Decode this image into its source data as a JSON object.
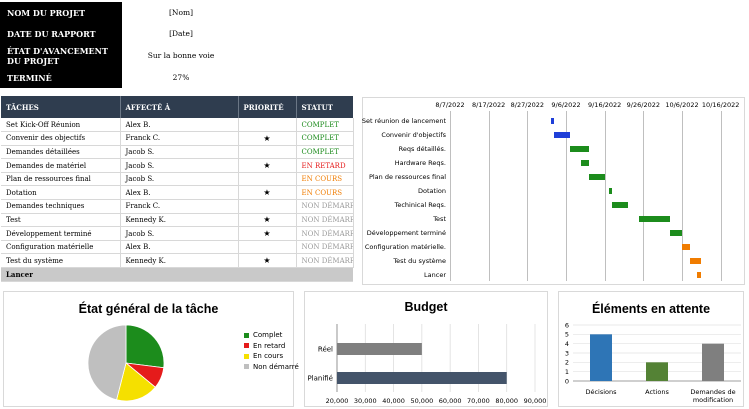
{
  "project_info": {
    "rows": [
      {
        "label": "NOM DU PROJET",
        "value": "[Nom]"
      },
      {
        "label": "DATE DU RAPPORT",
        "value": "[Date]"
      },
      {
        "label": "ÉTAT D'AVANCEMENT DU PROJET",
        "value": "Sur la bonne voie"
      },
      {
        "label": "TERMINÉ",
        "value": "27%"
      }
    ]
  },
  "task_table": {
    "headers": {
      "task": "TÂCHES",
      "assigned": "AFFECTÉ À",
      "priority": "PRIORITÉ",
      "status": "STATUT"
    },
    "rows": [
      {
        "task": "Set Kick-Off Réunion",
        "assigned": "Alex B.",
        "priority": "",
        "status": "COMPLET",
        "status_kind": "complet"
      },
      {
        "task": "Convenir des objectifs",
        "assigned": "Franck C.",
        "priority": "★",
        "status": "COMPLET",
        "status_kind": "complet"
      },
      {
        "task": "Demandes détaillées",
        "assigned": "Jacob S.",
        "priority": "",
        "status": "COMPLET",
        "status_kind": "complet"
      },
      {
        "task": "Demandes de matériel",
        "assigned": "Jacob S.",
        "priority": "★",
        "status": "EN RETARD",
        "status_kind": "retard"
      },
      {
        "task": "Plan de ressources final",
        "assigned": "Jacob S.",
        "priority": "",
        "status": "EN COURS",
        "status_kind": "encours"
      },
      {
        "task": "Dotation",
        "assigned": "Alex B.",
        "priority": "★",
        "status": "EN COURS",
        "status_kind": "encours"
      },
      {
        "task": "Demandes techniques",
        "assigned": "Franck C.",
        "priority": "",
        "status": "NON DÉMARRÉ",
        "status_kind": "nondem"
      },
      {
        "task": "Test",
        "assigned": "Kennedy K.",
        "priority": "★",
        "status": "NON DÉMARRÉ",
        "status_kind": "nondem"
      },
      {
        "task": "Développement terminé",
        "assigned": "Jacob S.",
        "priority": "★",
        "status": "NON DÉMARRÉ",
        "status_kind": "nondem"
      },
      {
        "task": "Configuration matérielle",
        "assigned": "Alex B.",
        "priority": "",
        "status": "NON DÉMARRÉ",
        "status_kind": "nondem"
      },
      {
        "task": "Test du système",
        "assigned": "Kennedy K.",
        "priority": "★",
        "status": "NON DÉMARRÉ",
        "status_kind": "nondem"
      }
    ],
    "footer_row": {
      "task": "Lancer"
    }
  },
  "status_colors": {
    "complet": "#1a8a1a",
    "retard": "#e51b1b",
    "encours": "#f07c00",
    "nondem": "#999999"
  },
  "chart_data": [
    {
      "type": "bar",
      "orientation": "horizontal-gantt",
      "x_ticks": [
        "8/7/2022",
        "8/17/2022",
        "8/27/2022",
        "9/6/2022",
        "9/16/2022",
        "9/26/2022",
        "10/6/2022",
        "10/16/2022"
      ],
      "x_range": [
        "2022-08-07",
        "2022-10-21"
      ],
      "tasks": [
        {
          "name": "Set réunion de lancement",
          "start": "2022-09-02",
          "end": "2022-09-03",
          "color": "#1f3fd8"
        },
        {
          "name": "Convenir d'objectifs",
          "start": "2022-09-03",
          "end": "2022-09-07",
          "color": "#1f3fd8"
        },
        {
          "name": "Reqs détaillés.",
          "start": "2022-09-07",
          "end": "2022-09-12",
          "color": "#1c8c1c"
        },
        {
          "name": "Hardware Reqs.",
          "start": "2022-09-10",
          "end": "2022-09-12",
          "color": "#1c8c1c"
        },
        {
          "name": "Plan de ressources final",
          "start": "2022-09-12",
          "end": "2022-09-16",
          "color": "#1c8c1c"
        },
        {
          "name": "Dotation",
          "start": "2022-09-17",
          "end": "2022-09-18",
          "color": "#1c8c1c"
        },
        {
          "name": "Techinical Reqs.",
          "start": "2022-09-18",
          "end": "2022-09-22",
          "color": "#1c8c1c"
        },
        {
          "name": "Test",
          "start": "2022-09-25",
          "end": "2022-10-03",
          "color": "#1c8c1c"
        },
        {
          "name": "Développement terminé",
          "start": "2022-10-03",
          "end": "2022-10-06",
          "color": "#1c8c1c"
        },
        {
          "name": "Configuration matérielle.",
          "start": "2022-10-06",
          "end": "2022-10-08",
          "color": "#f07c00"
        },
        {
          "name": "Test du système",
          "start": "2022-10-08",
          "end": "2022-10-11",
          "color": "#f07c00"
        },
        {
          "name": "Lancer",
          "start": "2022-10-10",
          "end": "2022-10-11",
          "color": "#f07c00"
        }
      ]
    },
    {
      "type": "pie",
      "title": "État général de la tâche",
      "slices": [
        {
          "name": "Complet",
          "value": 27,
          "color": "#1c8c1c"
        },
        {
          "name": "En retard",
          "value": 9,
          "color": "#e51b1b"
        },
        {
          "name": "En cours",
          "value": 18,
          "color": "#f5e000"
        },
        {
          "name": "Non démarré",
          "value": 46,
          "color": "#bfbfbf"
        }
      ],
      "legend_position": "right"
    },
    {
      "type": "bar",
      "orientation": "horizontal",
      "title": "Budget",
      "categories": [
        "Réel",
        "Planifié"
      ],
      "values": [
        50000,
        80000
      ],
      "colors": [
        "#7f7f7f",
        "#44546a"
      ],
      "xlim": [
        20000,
        90000
      ],
      "x_ticks": [
        "20,000",
        "30,000",
        "40,000",
        "50,000",
        "60,000",
        "70,000",
        "80,000",
        "90,000"
      ]
    },
    {
      "type": "bar",
      "title": "Éléments en attente",
      "categories": [
        "Décisions",
        "Actions",
        "Demandes de modification"
      ],
      "values": [
        5,
        2,
        4
      ],
      "colors": [
        "#2e75b6",
        "#548235",
        "#7f7f7f"
      ],
      "ylim": [
        0,
        6
      ],
      "y_ticks": [
        "0",
        "1",
        "2",
        "3",
        "4",
        "5",
        "6"
      ]
    }
  ]
}
